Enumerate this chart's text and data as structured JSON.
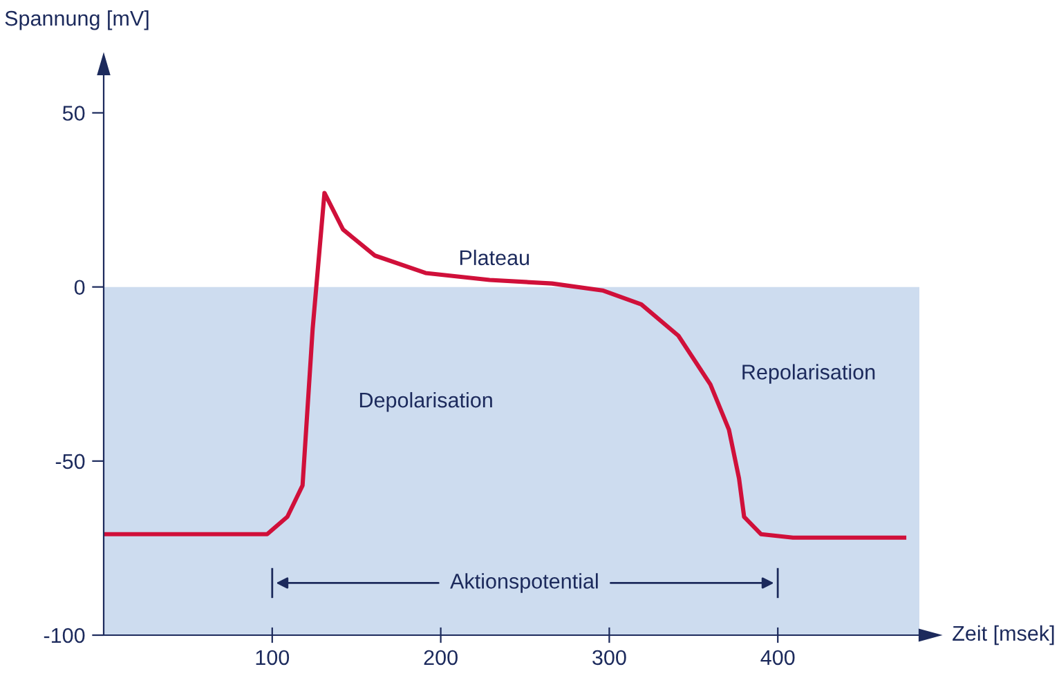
{
  "chart_data": {
    "type": "line",
    "xlabel": "Zeit [msek]",
    "ylabel": "Spannung [mV]",
    "xlim": [
      0,
      484
    ],
    "ylim": [
      -100,
      61
    ],
    "xticks": [
      100,
      200,
      300,
      400
    ],
    "yticks": [
      -100,
      -50,
      0,
      50
    ],
    "grid": false,
    "legend": false,
    "marker": "none",
    "line_style": "solid",
    "series": [
      {
        "color": "#d0103a",
        "x": [
          0,
          97,
          109,
          118,
          124,
          131,
          142,
          161,
          191,
          229,
          266,
          296,
          319,
          341,
          360,
          371,
          377,
          380,
          390,
          409,
          475
        ],
        "values": [
          -71,
          -71,
          -66,
          -57,
          -12,
          27,
          16.5,
          9,
          4,
          2,
          1,
          -1,
          -5,
          -14,
          -28,
          -41,
          -55,
          -66,
          -71,
          -72,
          -72
        ]
      }
    ],
    "bands": [
      {
        "axis": "y",
        "from": -100,
        "to": 0,
        "color": "#cddcef"
      }
    ],
    "annotations": [
      "Plateau",
      "Depolarisation",
      "Repolarisation",
      "Aktionspotential"
    ]
  }
}
